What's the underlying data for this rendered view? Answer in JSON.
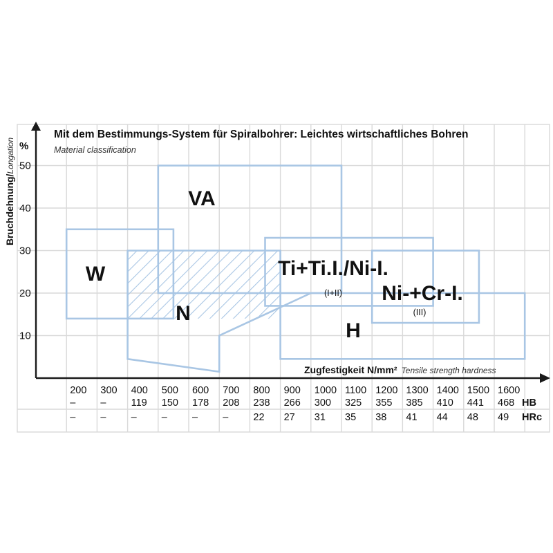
{
  "chart_data": {
    "type": "area",
    "title": "Mit dem Bestimmungs-System für Spiralbohrer: Leichtes wirtschaftliches Bohren",
    "subtitle": "Material classification",
    "ylabel": "Bruchdehnung/",
    "ylabel_italic": "Longation",
    "yunit": "%",
    "xlabel": "Zugfestigkeit N/mm²",
    "xlabel_italic": "Tensile strength hardness",
    "ylim": [
      0,
      50
    ],
    "xlim": [
      0,
      1700
    ],
    "y_ticks": [
      "10",
      "20",
      "30",
      "40",
      "50"
    ],
    "grid": true,
    "x_categories": {
      "tensile": [
        "200",
        "300",
        "400",
        "500",
        "600",
        "700",
        "800",
        "900",
        "1000",
        "1100",
        "1200",
        "1300",
        "1400",
        "1500",
        "1600"
      ],
      "HB": [
        "–",
        "–",
        "119",
        "150",
        "178",
        "208",
        "238",
        "266",
        "300",
        "325",
        "355",
        "385",
        "410",
        "441",
        "468"
      ],
      "HRc": [
        "–",
        "–",
        "–",
        "–",
        "–",
        "–",
        "22",
        "27",
        "31",
        "35",
        "38",
        "41",
        "44",
        "48",
        "49"
      ]
    },
    "row_labels": [
      "HB",
      "HRc"
    ],
    "regions": [
      {
        "label": "VA",
        "x": [
          400,
          1000
        ],
        "y": [
          20,
          50
        ]
      },
      {
        "label": "W",
        "x": [
          100,
          450
        ],
        "y": [
          14,
          35
        ]
      },
      {
        "label": "N",
        "x": [
          300,
          800
        ],
        "y": [
          14,
          30
        ],
        "fill": "hatched"
      },
      {
        "label": "Ti+Ti.I./Ni-I.",
        "sublabel": "(I+II)",
        "x": [
          750,
          1300
        ],
        "y": [
          17,
          33
        ]
      },
      {
        "label": "Ni-+Cr-I.",
        "sublabel": "(III)",
        "x": [
          1100,
          1450
        ],
        "y": [
          13,
          30
        ]
      },
      {
        "label": "H",
        "polygon": [
          [
            300,
            30
          ],
          [
            800,
            30
          ],
          [
            800,
            4.5
          ],
          [
            1600,
            4.5
          ],
          [
            1600,
            20
          ],
          [
            900,
            20
          ],
          [
            600,
            10
          ],
          [
            600,
            1.5
          ],
          [
            300,
            4.5
          ]
        ]
      }
    ]
  },
  "colors": {
    "region_stroke": "#a9c6e4",
    "grid": "#d9d9d9",
    "axis": "#1a1a1a",
    "text": "#111111"
  }
}
